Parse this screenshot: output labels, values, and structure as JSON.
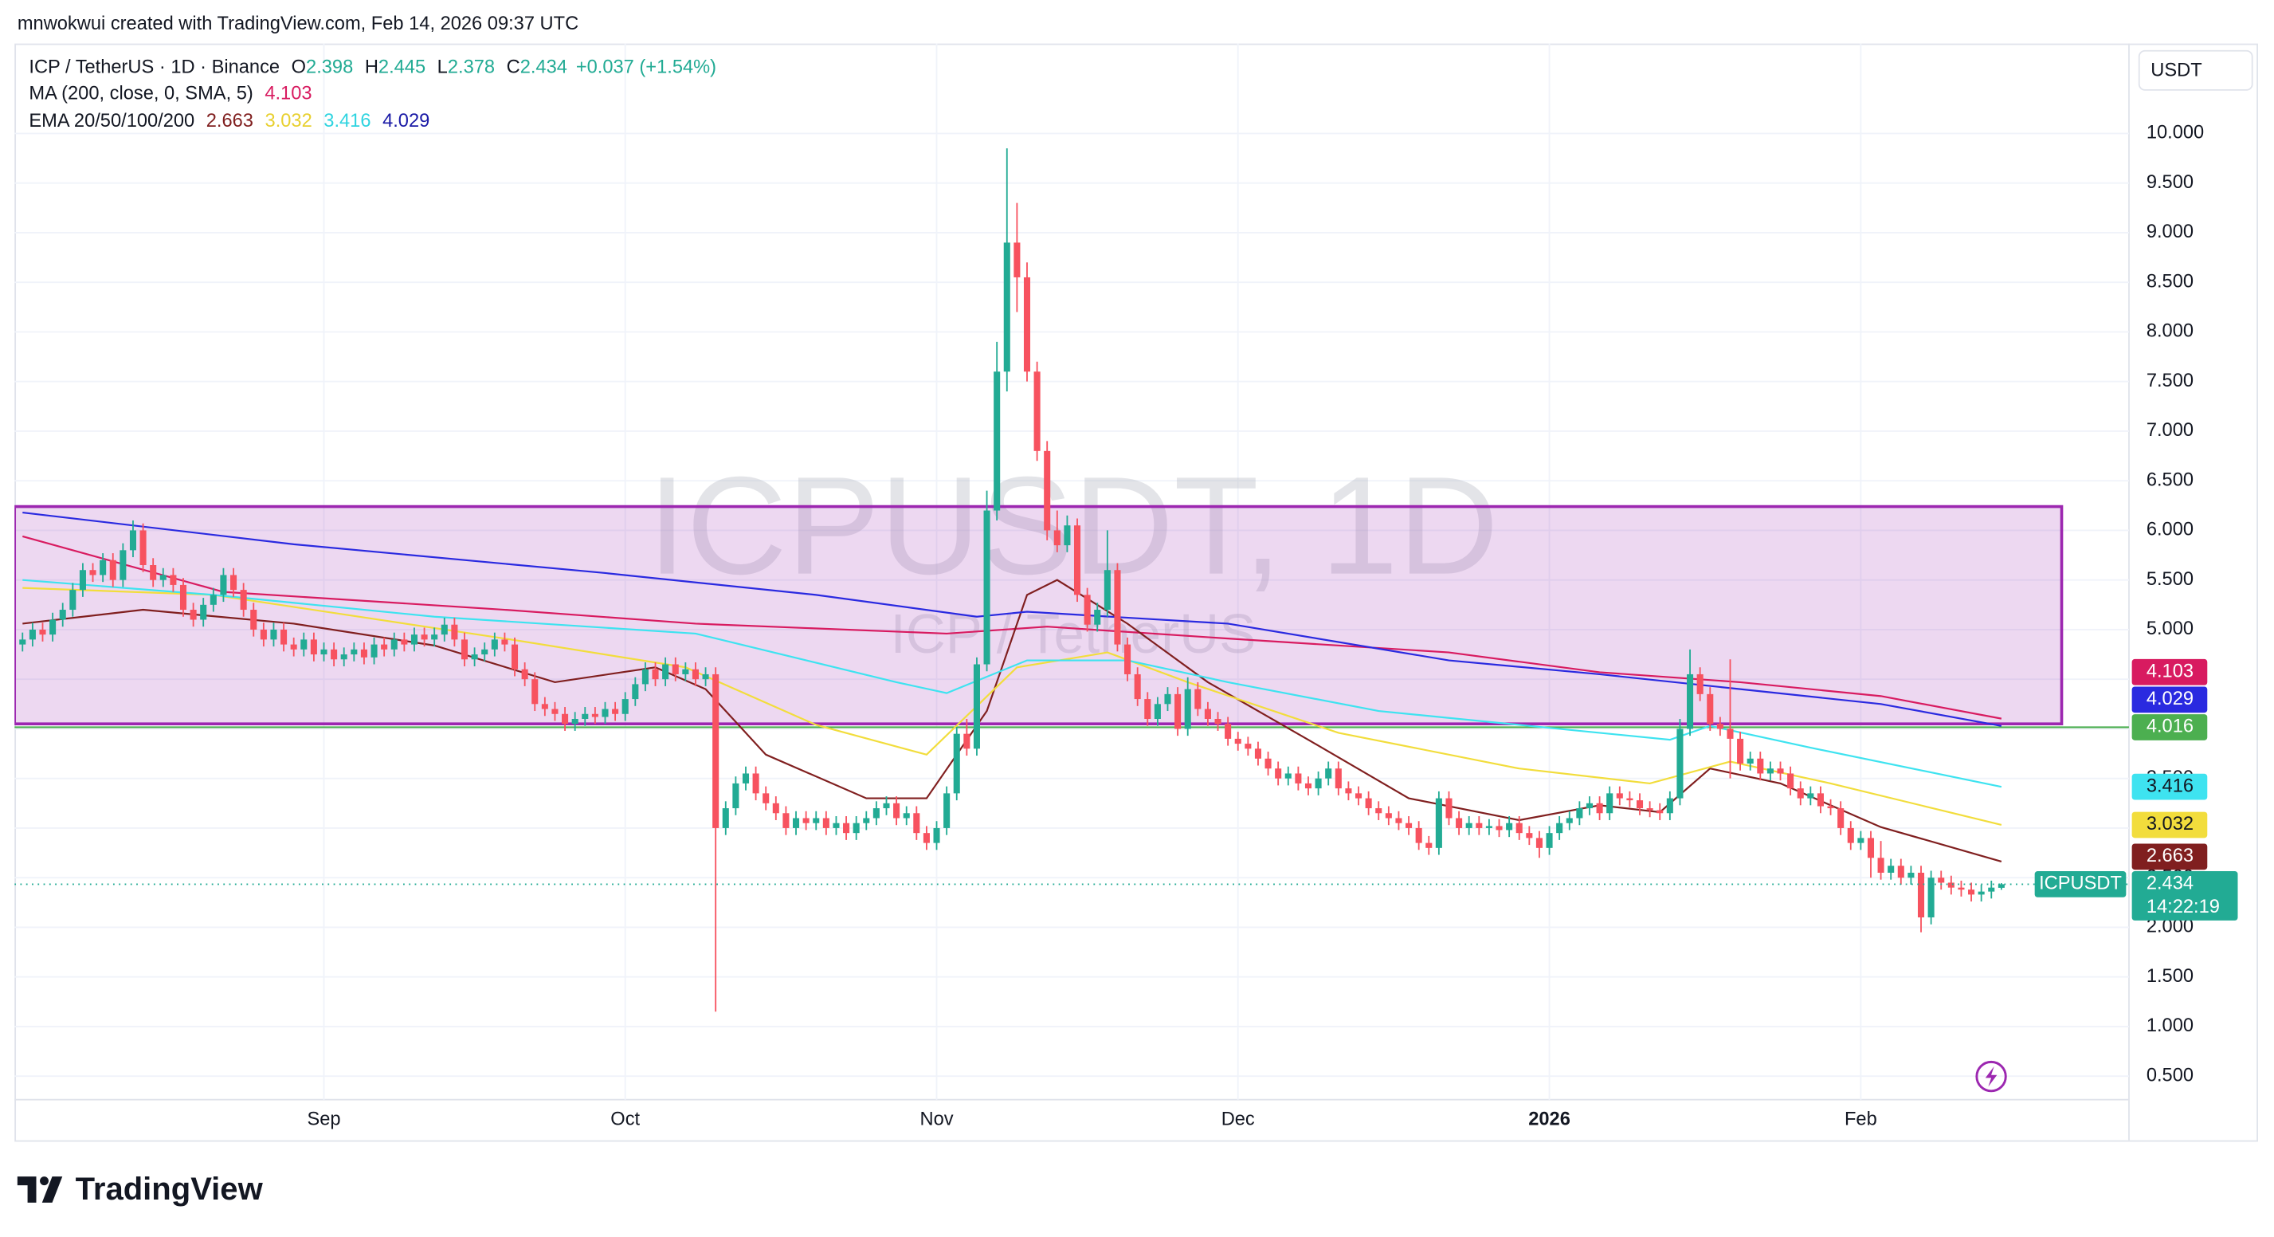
{
  "header": {
    "attribution": "mnwokwui created with TradingView.com, Feb 14, 2026 09:37 UTC"
  },
  "footer": {
    "logo": "TradingView"
  },
  "chart_data": {
    "type": "candlestick",
    "legend": {
      "symbol": "ICP / TetherUS · 1D · Binance",
      "ohlc_letters": [
        "O",
        "H",
        "L",
        "C"
      ],
      "change": "+0.037 (+1.54%)",
      "ma_label": "MA (200, close, 0, SMA, 5)",
      "ema_label": "EMA 20/50/100/200"
    },
    "watermark": {
      "title": "ICPUSDT, 1D",
      "subtitle": "ICP / TetherUS"
    },
    "currency": "USDT",
    "symbol_label": "ICPUSDT",
    "countdown": "14:22:19",
    "up_color": "#22ab94",
    "down_color": "#f7525f",
    "xlim": [
      -0.8,
      209.7
    ],
    "xticks": [
      {
        "value": 30,
        "label": "Sep"
      },
      {
        "value": 60,
        "label": "Oct"
      },
      {
        "value": 91,
        "label": "Nov"
      },
      {
        "value": 121,
        "label": "Dec"
      },
      {
        "value": 152,
        "label": "2026"
      },
      {
        "value": 183,
        "label": "Feb"
      }
    ],
    "ylim": [
      0.263,
      10.906
    ],
    "yticks": [
      {
        "value": 0.5,
        "label": "0.500"
      },
      {
        "value": 1,
        "label": "1.000"
      },
      {
        "value": 1.5,
        "label": "1.500"
      },
      {
        "value": 2,
        "label": "2.000"
      },
      {
        "value": 2.5,
        "label": "2.500"
      },
      {
        "value": 3,
        "label": "3.000"
      },
      {
        "value": 3.5,
        "label": "3.500"
      },
      {
        "value": 4,
        "label": "4.000"
      },
      {
        "value": 4.5,
        "label": "4.500"
      },
      {
        "value": 5,
        "label": "5.000"
      },
      {
        "value": 5.5,
        "label": "5.500"
      },
      {
        "value": 6,
        "label": "6.000"
      },
      {
        "value": 6.5,
        "label": "6.500"
      },
      {
        "value": 7,
        "label": "7.000"
      },
      {
        "value": 7.5,
        "label": "7.500"
      },
      {
        "value": 8,
        "label": "8.000"
      },
      {
        "value": 8.5,
        "label": "8.500"
      },
      {
        "value": 9,
        "label": "9.000"
      },
      {
        "value": 9.5,
        "label": "9.500"
      },
      {
        "value": 10,
        "label": "10.000"
      }
    ],
    "grid": true,
    "rectangle": {
      "x": [
        -0.8,
        203
      ],
      "y": [
        4.05,
        6.24
      ],
      "color": "#9c27b0"
    },
    "hline": {
      "value": 4.016,
      "color": "#4caf50"
    },
    "candles": [
      [
        4.85,
        4.97,
        4.78,
        4.9
      ],
      [
        4.9,
        5.07,
        4.83,
        5.0
      ],
      [
        5.0,
        5.07,
        4.88,
        4.95
      ],
      [
        4.95,
        5.17,
        4.88,
        5.1
      ],
      [
        5.1,
        5.27,
        5.03,
        5.2
      ],
      [
        5.2,
        5.47,
        5.13,
        5.4
      ],
      [
        5.4,
        5.67,
        5.33,
        5.6
      ],
      [
        5.6,
        5.67,
        5.48,
        5.55
      ],
      [
        5.55,
        5.77,
        5.48,
        5.7
      ],
      [
        5.7,
        5.77,
        5.43,
        5.5
      ],
      [
        5.5,
        5.87,
        5.43,
        5.8
      ],
      [
        5.8,
        6.1,
        5.73,
        6.0
      ],
      [
        6.0,
        6.07,
        5.58,
        5.65
      ],
      [
        5.65,
        5.72,
        5.43,
        5.5
      ],
      [
        5.5,
        5.62,
        5.43,
        5.55
      ],
      [
        5.55,
        5.62,
        5.38,
        5.45
      ],
      [
        5.45,
        5.52,
        5.13,
        5.2
      ],
      [
        5.2,
        5.27,
        5.03,
        5.1
      ],
      [
        5.1,
        5.32,
        5.03,
        5.25
      ],
      [
        5.25,
        5.42,
        5.18,
        5.35
      ],
      [
        5.35,
        5.62,
        5.28,
        5.55
      ],
      [
        5.55,
        5.62,
        5.33,
        5.4
      ],
      [
        5.4,
        5.47,
        5.13,
        5.2
      ],
      [
        5.2,
        5.27,
        4.93,
        5.0
      ],
      [
        5.0,
        5.07,
        4.83,
        4.9
      ],
      [
        4.9,
        5.07,
        4.83,
        5.0
      ],
      [
        5.0,
        5.07,
        4.78,
        4.85
      ],
      [
        4.85,
        4.92,
        4.73,
        4.8
      ],
      [
        4.8,
        4.97,
        4.73,
        4.9
      ],
      [
        4.9,
        4.97,
        4.68,
        4.75
      ],
      [
        4.75,
        4.87,
        4.68,
        4.8
      ],
      [
        4.8,
        4.87,
        4.63,
        4.7
      ],
      [
        4.7,
        4.82,
        4.63,
        4.75
      ],
      [
        4.75,
        4.87,
        4.68,
        4.8
      ],
      [
        4.8,
        4.87,
        4.65,
        4.72
      ],
      [
        4.72,
        4.92,
        4.65,
        4.85
      ],
      [
        4.85,
        4.92,
        4.73,
        4.8
      ],
      [
        4.8,
        4.97,
        4.73,
        4.9
      ],
      [
        4.9,
        4.97,
        4.78,
        4.85
      ],
      [
        4.85,
        5.02,
        4.78,
        4.95
      ],
      [
        4.95,
        5.02,
        4.83,
        4.9
      ],
      [
        4.9,
        5.02,
        4.83,
        4.95
      ],
      [
        4.95,
        5.12,
        4.88,
        5.05
      ],
      [
        5.05,
        5.12,
        4.83,
        4.9
      ],
      [
        4.9,
        4.97,
        4.63,
        4.7
      ],
      [
        4.7,
        4.82,
        4.63,
        4.75
      ],
      [
        4.75,
        4.87,
        4.68,
        4.8
      ],
      [
        4.8,
        4.97,
        4.73,
        4.9
      ],
      [
        4.9,
        4.97,
        4.78,
        4.85
      ],
      [
        4.85,
        4.92,
        4.53,
        4.6
      ],
      [
        4.6,
        4.67,
        4.43,
        4.5
      ],
      [
        4.5,
        4.57,
        4.18,
        4.25
      ],
      [
        4.25,
        4.32,
        4.13,
        4.2
      ],
      [
        4.2,
        4.27,
        4.08,
        4.15
      ],
      [
        4.15,
        4.22,
        3.98,
        4.05
      ],
      [
        4.05,
        4.17,
        3.98,
        4.1
      ],
      [
        4.1,
        4.22,
        4.03,
        4.15
      ],
      [
        4.15,
        4.22,
        4.05,
        4.12
      ],
      [
        4.12,
        4.27,
        4.05,
        4.2
      ],
      [
        4.2,
        4.27,
        4.08,
        4.15
      ],
      [
        4.15,
        4.37,
        4.08,
        4.3
      ],
      [
        4.3,
        4.52,
        4.23,
        4.45
      ],
      [
        4.45,
        4.67,
        4.38,
        4.6
      ],
      [
        4.6,
        4.67,
        4.43,
        4.5
      ],
      [
        4.5,
        4.72,
        4.43,
        4.65
      ],
      [
        4.65,
        4.72,
        4.48,
        4.55
      ],
      [
        4.55,
        4.67,
        4.48,
        4.6
      ],
      [
        4.6,
        4.67,
        4.43,
        4.5
      ],
      [
        4.5,
        4.62,
        4.43,
        4.55
      ],
      [
        4.55,
        4.62,
        1.15,
        3.0
      ],
      [
        3.0,
        3.27,
        2.93,
        3.2
      ],
      [
        3.2,
        3.52,
        3.13,
        3.45
      ],
      [
        3.45,
        3.62,
        3.38,
        3.55
      ],
      [
        3.55,
        3.62,
        3.28,
        3.35
      ],
      [
        3.35,
        3.42,
        3.18,
        3.25
      ],
      [
        3.25,
        3.32,
        3.08,
        3.15
      ],
      [
        3.15,
        3.22,
        2.93,
        3.0
      ],
      [
        3.0,
        3.17,
        2.93,
        3.1
      ],
      [
        3.1,
        3.17,
        2.98,
        3.05
      ],
      [
        3.05,
        3.17,
        2.98,
        3.1
      ],
      [
        3.1,
        3.17,
        2.93,
        3.0
      ],
      [
        3.0,
        3.12,
        2.93,
        3.05
      ],
      [
        3.05,
        3.12,
        2.88,
        2.95
      ],
      [
        2.95,
        3.12,
        2.88,
        3.05
      ],
      [
        3.05,
        3.17,
        2.98,
        3.1
      ],
      [
        3.1,
        3.27,
        3.03,
        3.2
      ],
      [
        3.2,
        3.32,
        3.13,
        3.25
      ],
      [
        3.25,
        3.32,
        3.03,
        3.1
      ],
      [
        3.1,
        3.22,
        3.03,
        3.15
      ],
      [
        3.15,
        3.22,
        2.88,
        2.95
      ],
      [
        2.95,
        3.02,
        2.78,
        2.85
      ],
      [
        2.85,
        3.07,
        2.78,
        3.0
      ],
      [
        3.0,
        3.42,
        2.93,
        3.35
      ],
      [
        3.35,
        4.02,
        3.28,
        3.95
      ],
      [
        3.95,
        4.1,
        3.73,
        3.8
      ],
      [
        3.8,
        4.72,
        3.73,
        4.65
      ],
      [
        4.65,
        6.4,
        4.58,
        6.2
      ],
      [
        6.2,
        7.9,
        6.1,
        7.6
      ],
      [
        7.6,
        9.85,
        7.4,
        8.9
      ],
      [
        8.9,
        9.3,
        8.2,
        8.55
      ],
      [
        8.55,
        8.7,
        7.5,
        7.6
      ],
      [
        7.6,
        7.7,
        6.7,
        6.8
      ],
      [
        6.8,
        6.9,
        5.9,
        6.0
      ],
      [
        6.0,
        6.2,
        5.78,
        5.85
      ],
      [
        5.85,
        6.15,
        5.78,
        6.05
      ],
      [
        6.05,
        6.12,
        5.28,
        5.35
      ],
      [
        5.35,
        5.42,
        4.98,
        5.05
      ],
      [
        5.05,
        5.27,
        4.98,
        5.2
      ],
      [
        5.2,
        6.0,
        5.13,
        5.6
      ],
      [
        5.6,
        5.67,
        4.78,
        4.85
      ],
      [
        4.85,
        4.92,
        4.48,
        4.55
      ],
      [
        4.55,
        4.62,
        4.23,
        4.3
      ],
      [
        4.3,
        4.37,
        4.03,
        4.1
      ],
      [
        4.1,
        4.32,
        4.03,
        4.25
      ],
      [
        4.25,
        4.42,
        4.18,
        4.35
      ],
      [
        4.35,
        4.42,
        3.93,
        4.0
      ],
      [
        4.0,
        4.52,
        3.93,
        4.4
      ],
      [
        4.4,
        4.47,
        4.13,
        4.2
      ],
      [
        4.2,
        4.27,
        4.03,
        4.1
      ],
      [
        4.1,
        4.17,
        3.98,
        4.05
      ],
      [
        4.05,
        4.12,
        3.83,
        3.9
      ],
      [
        3.9,
        3.97,
        3.78,
        3.85
      ],
      [
        3.85,
        3.92,
        3.73,
        3.8
      ],
      [
        3.8,
        3.87,
        3.63,
        3.7
      ],
      [
        3.7,
        3.77,
        3.53,
        3.6
      ],
      [
        3.6,
        3.67,
        3.43,
        3.5
      ],
      [
        3.5,
        3.62,
        3.43,
        3.55
      ],
      [
        3.55,
        3.62,
        3.38,
        3.45
      ],
      [
        3.45,
        3.52,
        3.33,
        3.4
      ],
      [
        3.4,
        3.57,
        3.33,
        3.5
      ],
      [
        3.5,
        3.67,
        3.43,
        3.6
      ],
      [
        3.6,
        3.67,
        3.33,
        3.4
      ],
      [
        3.4,
        3.47,
        3.28,
        3.35
      ],
      [
        3.35,
        3.42,
        3.23,
        3.3
      ],
      [
        3.3,
        3.37,
        3.13,
        3.2
      ],
      [
        3.2,
        3.27,
        3.08,
        3.15
      ],
      [
        3.15,
        3.22,
        3.03,
        3.1
      ],
      [
        3.1,
        3.17,
        2.98,
        3.05
      ],
      [
        3.05,
        3.12,
        2.93,
        3.0
      ],
      [
        3.0,
        3.07,
        2.78,
        2.85
      ],
      [
        2.85,
        2.92,
        2.73,
        2.8
      ],
      [
        2.8,
        3.37,
        2.73,
        3.3
      ],
      [
        3.3,
        3.37,
        3.03,
        3.1
      ],
      [
        3.1,
        3.17,
        2.93,
        3.0
      ],
      [
        3.0,
        3.12,
        2.93,
        3.05
      ],
      [
        3.05,
        3.12,
        2.93,
        3.0
      ],
      [
        3.0,
        3.09,
        2.93,
        3.02
      ],
      [
        3.02,
        3.09,
        2.91,
        2.98
      ],
      [
        2.98,
        3.12,
        2.91,
        3.05
      ],
      [
        3.05,
        3.12,
        2.88,
        2.95
      ],
      [
        2.95,
        3.02,
        2.83,
        2.9
      ],
      [
        2.9,
        2.97,
        2.7,
        2.8
      ],
      [
        2.8,
        3.02,
        2.73,
        2.95
      ],
      [
        2.95,
        3.12,
        2.88,
        3.05
      ],
      [
        3.05,
        3.17,
        2.98,
        3.1
      ],
      [
        3.1,
        3.27,
        3.03,
        3.2
      ],
      [
        3.2,
        3.32,
        3.13,
        3.25
      ],
      [
        3.25,
        3.32,
        3.08,
        3.15
      ],
      [
        3.15,
        3.42,
        3.08,
        3.35
      ],
      [
        3.35,
        3.42,
        3.23,
        3.3
      ],
      [
        3.3,
        3.37,
        3.21,
        3.28
      ],
      [
        3.28,
        3.35,
        3.13,
        3.2
      ],
      [
        3.2,
        3.27,
        3.11,
        3.18
      ],
      [
        3.18,
        3.25,
        3.08,
        3.15
      ],
      [
        3.15,
        3.37,
        3.08,
        3.3
      ],
      [
        3.3,
        4.1,
        3.23,
        4.0
      ],
      [
        4.0,
        4.8,
        3.93,
        4.55
      ],
      [
        4.55,
        4.62,
        4.28,
        4.35
      ],
      [
        4.35,
        4.42,
        3.98,
        4.05
      ],
      [
        4.05,
        4.12,
        3.93,
        4.0
      ],
      [
        4.0,
        4.7,
        3.5,
        3.9
      ],
      [
        3.9,
        3.97,
        3.58,
        3.65
      ],
      [
        3.65,
        3.77,
        3.58,
        3.7
      ],
      [
        3.7,
        3.77,
        3.48,
        3.55
      ],
      [
        3.55,
        3.67,
        3.48,
        3.6
      ],
      [
        3.6,
        3.67,
        3.48,
        3.55
      ],
      [
        3.55,
        3.62,
        3.33,
        3.4
      ],
      [
        3.4,
        3.47,
        3.23,
        3.3
      ],
      [
        3.3,
        3.42,
        3.23,
        3.35
      ],
      [
        3.35,
        3.42,
        3.15,
        3.22
      ],
      [
        3.22,
        3.29,
        3.13,
        3.2
      ],
      [
        3.2,
        3.27,
        2.93,
        3.0
      ],
      [
        3.0,
        3.07,
        2.78,
        2.85
      ],
      [
        2.85,
        2.97,
        2.78,
        2.9
      ],
      [
        2.9,
        2.97,
        2.5,
        2.7
      ],
      [
        2.7,
        2.87,
        2.48,
        2.55
      ],
      [
        2.55,
        2.69,
        2.48,
        2.62
      ],
      [
        2.62,
        2.69,
        2.43,
        2.5
      ],
      [
        2.5,
        2.62,
        2.43,
        2.55
      ],
      [
        2.55,
        2.62,
        1.95,
        2.1
      ],
      [
        2.1,
        2.57,
        2.03,
        2.5
      ],
      [
        2.5,
        2.57,
        2.38,
        2.45
      ],
      [
        2.45,
        2.52,
        2.33,
        2.4
      ],
      [
        2.4,
        2.47,
        2.31,
        2.38
      ],
      [
        2.38,
        2.45,
        2.26,
        2.33
      ],
      [
        2.33,
        2.43,
        2.26,
        2.36
      ],
      [
        2.36,
        2.47,
        2.29,
        2.4
      ],
      [
        2.398,
        2.445,
        2.378,
        2.434
      ]
    ],
    "series": [
      {
        "color": "#d81b60",
        "tag_text_color": "#ffffff",
        "x": [
          0,
          20,
          48,
          67,
          92,
          102,
          120,
          142,
          157,
          171,
          185,
          197
        ],
        "values": [
          5.94,
          5.38,
          5.2,
          5.06,
          4.96,
          5.03,
          4.91,
          4.77,
          4.57,
          4.47,
          4.33,
          4.103
        ]
      },
      {
        "color": "#801f1f",
        "tag_text_color": "#ffffff",
        "x": [
          0,
          12,
          27,
          41,
          53,
          63,
          68,
          74,
          84,
          90,
          96,
          100,
          103,
          110,
          118,
          128,
          138,
          149,
          157,
          163,
          168,
          175,
          185,
          197
        ],
        "values": [
          5.06,
          5.2,
          5.06,
          4.84,
          4.47,
          4.62,
          4.4,
          3.74,
          3.3,
          3.3,
          4.18,
          5.35,
          5.5,
          5.06,
          4.47,
          3.89,
          3.3,
          3.08,
          3.23,
          3.16,
          3.6,
          3.45,
          3.01,
          2.663
        ]
      },
      {
        "color": "#f2dd3c",
        "tag_text_color": "#131722",
        "x": [
          0,
          19,
          48,
          66,
          79,
          90,
          99,
          108,
          116,
          131,
          149,
          162,
          170,
          180,
          197
        ],
        "values": [
          5.42,
          5.35,
          4.91,
          4.62,
          4.04,
          3.74,
          4.62,
          4.77,
          4.47,
          3.96,
          3.6,
          3.45,
          3.67,
          3.45,
          3.032
        ]
      },
      {
        "color": "#3ee3f0",
        "tag_text_color": "#131722",
        "x": [
          0,
          19,
          41,
          67,
          87,
          92,
          100,
          110,
          120,
          135,
          157,
          164,
          168,
          178,
          197
        ],
        "values": [
          5.5,
          5.35,
          5.13,
          4.96,
          4.47,
          4.36,
          4.69,
          4.69,
          4.47,
          4.18,
          3.96,
          3.89,
          4.03,
          3.81,
          3.416
        ]
      },
      {
        "color": "#2a2ae0",
        "tag_text_color": "#ffffff",
        "x": [
          0,
          27,
          58,
          79,
          95,
          100,
          120,
          142,
          157,
          171,
          185,
          197
        ],
        "values": [
          6.18,
          5.86,
          5.57,
          5.35,
          5.13,
          5.18,
          5.06,
          4.69,
          4.55,
          4.4,
          4.25,
          4.029
        ]
      }
    ]
  }
}
